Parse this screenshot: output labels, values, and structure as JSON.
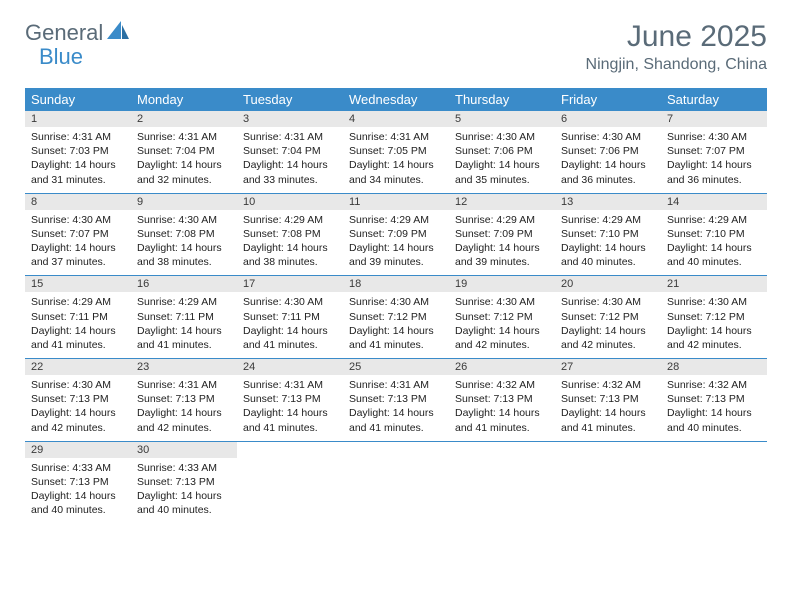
{
  "logo": {
    "text1": "General",
    "text2": "Blue"
  },
  "title": "June 2025",
  "location": "Ningjin, Shandong, China",
  "colors": {
    "header_bg": "#3a8bc9",
    "header_fg": "#ffffff",
    "daynum_bg": "#e8e8e8",
    "border": "#3a8bc9",
    "title_color": "#5a6b78"
  },
  "weekdays": [
    "Sunday",
    "Monday",
    "Tuesday",
    "Wednesday",
    "Thursday",
    "Friday",
    "Saturday"
  ],
  "days": [
    {
      "n": "1",
      "sr": "4:31 AM",
      "ss": "7:03 PM",
      "dl": "14 hours and 31 minutes."
    },
    {
      "n": "2",
      "sr": "4:31 AM",
      "ss": "7:04 PM",
      "dl": "14 hours and 32 minutes."
    },
    {
      "n": "3",
      "sr": "4:31 AM",
      "ss": "7:04 PM",
      "dl": "14 hours and 33 minutes."
    },
    {
      "n": "4",
      "sr": "4:31 AM",
      "ss": "7:05 PM",
      "dl": "14 hours and 34 minutes."
    },
    {
      "n": "5",
      "sr": "4:30 AM",
      "ss": "7:06 PM",
      "dl": "14 hours and 35 minutes."
    },
    {
      "n": "6",
      "sr": "4:30 AM",
      "ss": "7:06 PM",
      "dl": "14 hours and 36 minutes."
    },
    {
      "n": "7",
      "sr": "4:30 AM",
      "ss": "7:07 PM",
      "dl": "14 hours and 36 minutes."
    },
    {
      "n": "8",
      "sr": "4:30 AM",
      "ss": "7:07 PM",
      "dl": "14 hours and 37 minutes."
    },
    {
      "n": "9",
      "sr": "4:30 AM",
      "ss": "7:08 PM",
      "dl": "14 hours and 38 minutes."
    },
    {
      "n": "10",
      "sr": "4:29 AM",
      "ss": "7:08 PM",
      "dl": "14 hours and 38 minutes."
    },
    {
      "n": "11",
      "sr": "4:29 AM",
      "ss": "7:09 PM",
      "dl": "14 hours and 39 minutes."
    },
    {
      "n": "12",
      "sr": "4:29 AM",
      "ss": "7:09 PM",
      "dl": "14 hours and 39 minutes."
    },
    {
      "n": "13",
      "sr": "4:29 AM",
      "ss": "7:10 PM",
      "dl": "14 hours and 40 minutes."
    },
    {
      "n": "14",
      "sr": "4:29 AM",
      "ss": "7:10 PM",
      "dl": "14 hours and 40 minutes."
    },
    {
      "n": "15",
      "sr": "4:29 AM",
      "ss": "7:11 PM",
      "dl": "14 hours and 41 minutes."
    },
    {
      "n": "16",
      "sr": "4:29 AM",
      "ss": "7:11 PM",
      "dl": "14 hours and 41 minutes."
    },
    {
      "n": "17",
      "sr": "4:30 AM",
      "ss": "7:11 PM",
      "dl": "14 hours and 41 minutes."
    },
    {
      "n": "18",
      "sr": "4:30 AM",
      "ss": "7:12 PM",
      "dl": "14 hours and 41 minutes."
    },
    {
      "n": "19",
      "sr": "4:30 AM",
      "ss": "7:12 PM",
      "dl": "14 hours and 42 minutes."
    },
    {
      "n": "20",
      "sr": "4:30 AM",
      "ss": "7:12 PM",
      "dl": "14 hours and 42 minutes."
    },
    {
      "n": "21",
      "sr": "4:30 AM",
      "ss": "7:12 PM",
      "dl": "14 hours and 42 minutes."
    },
    {
      "n": "22",
      "sr": "4:30 AM",
      "ss": "7:13 PM",
      "dl": "14 hours and 42 minutes."
    },
    {
      "n": "23",
      "sr": "4:31 AM",
      "ss": "7:13 PM",
      "dl": "14 hours and 42 minutes."
    },
    {
      "n": "24",
      "sr": "4:31 AM",
      "ss": "7:13 PM",
      "dl": "14 hours and 41 minutes."
    },
    {
      "n": "25",
      "sr": "4:31 AM",
      "ss": "7:13 PM",
      "dl": "14 hours and 41 minutes."
    },
    {
      "n": "26",
      "sr": "4:32 AM",
      "ss": "7:13 PM",
      "dl": "14 hours and 41 minutes."
    },
    {
      "n": "27",
      "sr": "4:32 AM",
      "ss": "7:13 PM",
      "dl": "14 hours and 41 minutes."
    },
    {
      "n": "28",
      "sr": "4:32 AM",
      "ss": "7:13 PM",
      "dl": "14 hours and 40 minutes."
    },
    {
      "n": "29",
      "sr": "4:33 AM",
      "ss": "7:13 PM",
      "dl": "14 hours and 40 minutes."
    },
    {
      "n": "30",
      "sr": "4:33 AM",
      "ss": "7:13 PM",
      "dl": "14 hours and 40 minutes."
    }
  ],
  "labels": {
    "sunrise": "Sunrise:",
    "sunset": "Sunset:",
    "daylight": "Daylight:"
  }
}
